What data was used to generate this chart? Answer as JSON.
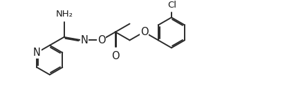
{
  "background_color": "#ffffff",
  "line_color": "#2a2a2a",
  "line_width": 1.4,
  "text_color": "#1a1a1a",
  "font_size": 9.5,
  "figsize": [
    4.28,
    1.51
  ],
  "dpi": 100,
  "xlim": [
    0,
    10.5
  ],
  "ylim": [
    0,
    3.7
  ]
}
